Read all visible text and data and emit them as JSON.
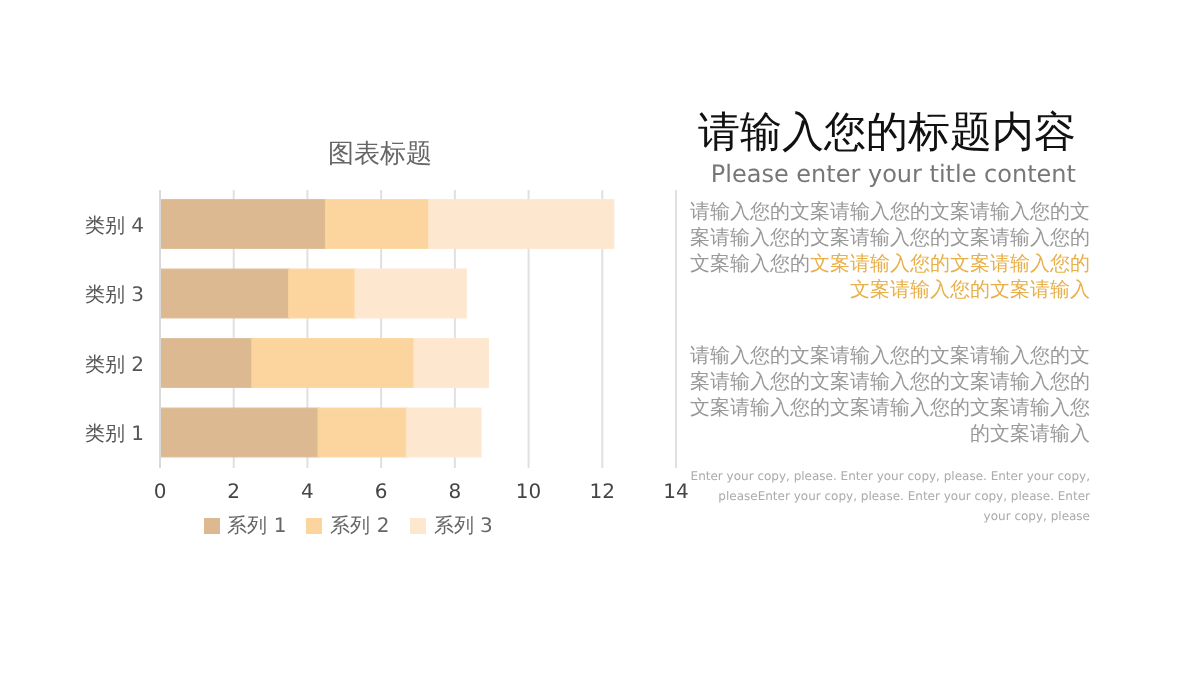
{
  "chart_data": {
    "type": "bar",
    "orientation": "horizontal",
    "stacked": true,
    "title": "图表标题",
    "categories": [
      "类别 4",
      "类别 3",
      "类别 2",
      "类别 1"
    ],
    "series": [
      {
        "name": "系列 1",
        "color": "#dcb991",
        "values": [
          4.5,
          3.5,
          2.5,
          4.3
        ]
      },
      {
        "name": "系列 2",
        "color": "#fbd59d",
        "values": [
          2.8,
          1.8,
          4.4,
          2.4
        ]
      },
      {
        "name": "系列 3",
        "color": "#fde7cf",
        "values": [
          5,
          3,
          2,
          2
        ]
      }
    ],
    "xlim": [
      0,
      14
    ],
    "xticks": [
      0,
      2,
      4,
      6,
      8,
      10,
      12,
      14
    ],
    "grid": "x",
    "legend": "bottom",
    "annotations": [
      "请输入您的标题内容",
      "Please enter your title content",
      "请输入您的文案请输入您的文案请输入您的文案请输入您的文案请输入您的文案请输入您的文案输入您的",
      "文案请输入您的文案请输入您的文案请输入您的文案请输入",
      "请输入您的文案请输入您的文案请输入您的文案请输入您的文案请输入您的文案请输入您的文案请输入您的文案请输入您的文案请输入您的文案请输入",
      "Enter your copy, please. Enter your copy, please. Enter your copy, pleaseEnter your copy, please. Enter your copy, please. Enter your copy, please"
    ]
  }
}
